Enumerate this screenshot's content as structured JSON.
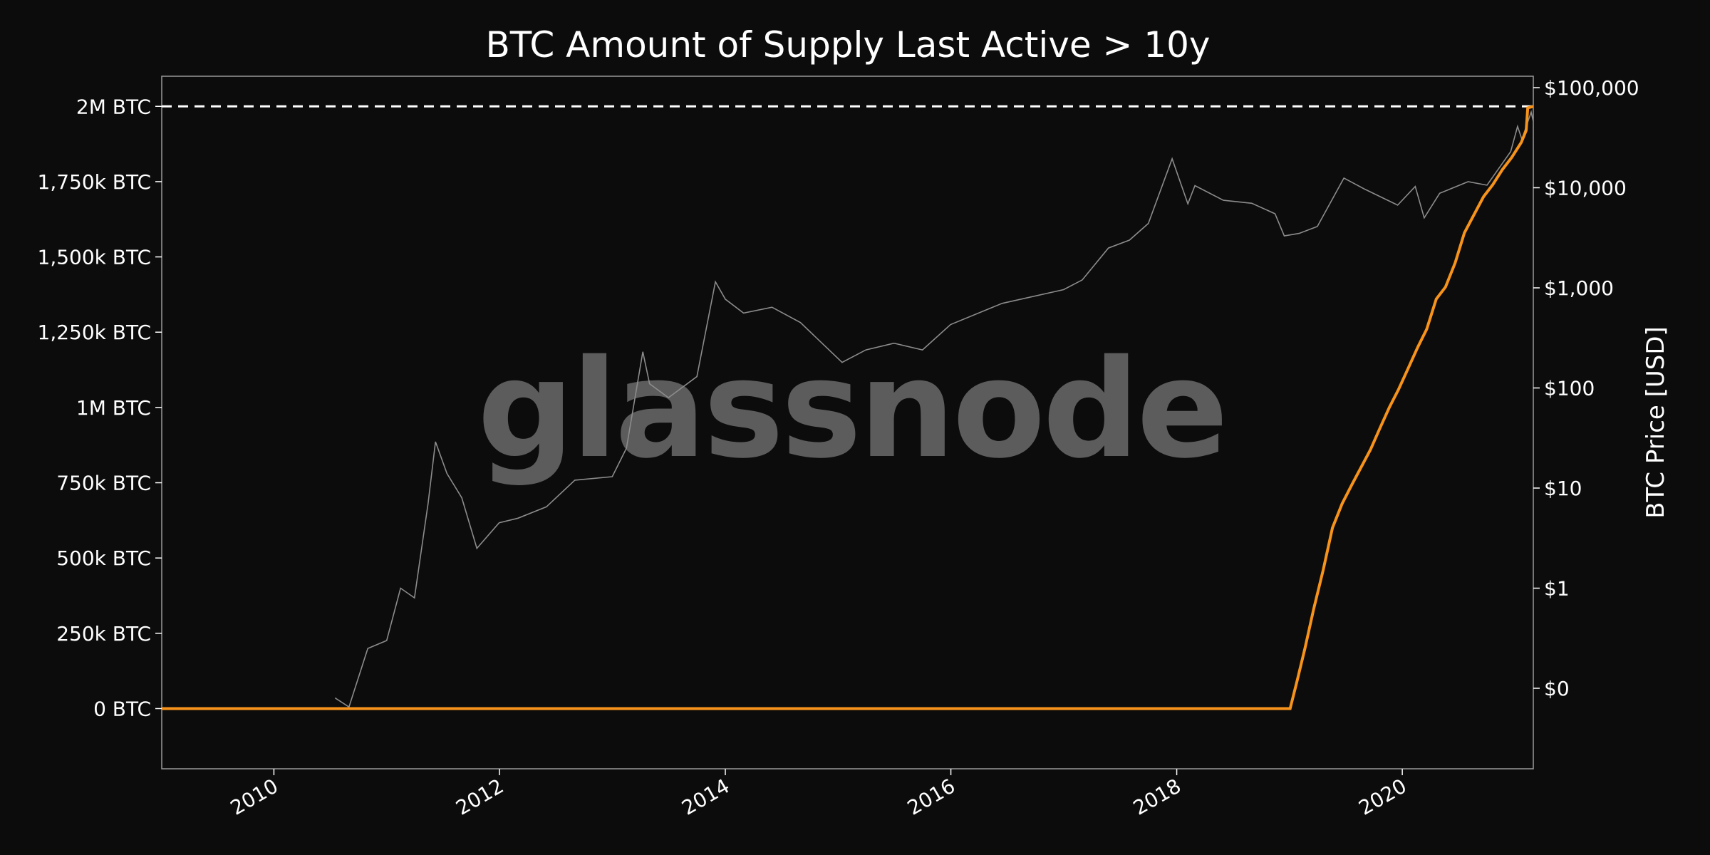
{
  "chart_data": {
    "type": "line",
    "title": "BTC Amount of Supply Last Active > 10y",
    "watermark": "glassnode",
    "x_range": [
      "2009-01-03",
      "2021-02-28"
    ],
    "x_ticks": [
      "2010",
      "2012",
      "2014",
      "2016",
      "2018",
      "2020"
    ],
    "y_left": {
      "label": "",
      "range": [
        -200000,
        2100000
      ],
      "unit": "BTC",
      "ticks": [
        {
          "value": 0,
          "label": "0 BTC"
        },
        {
          "value": 250000,
          "label": "250k BTC"
        },
        {
          "value": 500000,
          "label": "500k BTC"
        },
        {
          "value": 750000,
          "label": "750k BTC"
        },
        {
          "value": 1000000,
          "label": "1M BTC"
        },
        {
          "value": 1250000,
          "label": "1,250k BTC"
        },
        {
          "value": 1500000,
          "label": "1,500k BTC"
        },
        {
          "value": 1750000,
          "label": "1,750k BTC"
        },
        {
          "value": 2000000,
          "label": "2M BTC"
        }
      ]
    },
    "y_right": {
      "label": "BTC Price [USD]",
      "scale": "log",
      "ticks": [
        {
          "value": 0.1,
          "label": "$0"
        },
        {
          "value": 1,
          "label": "$1"
        },
        {
          "value": 10,
          "label": "$10"
        },
        {
          "value": 100,
          "label": "$100"
        },
        {
          "value": 1000,
          "label": "$1,000"
        },
        {
          "value": 10000,
          "label": "$10,000"
        },
        {
          "value": 100000,
          "label": "$100,000"
        }
      ]
    },
    "reference_line": {
      "value": 2000000,
      "style": "dashed",
      "color": "#ffffff"
    },
    "grid": false,
    "series": [
      {
        "axis": "left",
        "color": "#f7931a",
        "points": [
          [
            "2009-01-03",
            0
          ],
          [
            "2019-01-03",
            0
          ],
          [
            "2019-01-25",
            90000
          ],
          [
            "2019-02-20",
            200000
          ],
          [
            "2019-03-20",
            330000
          ],
          [
            "2019-04-20",
            460000
          ],
          [
            "2019-05-20",
            600000
          ],
          [
            "2019-06-20",
            680000
          ],
          [
            "2019-07-20",
            740000
          ],
          [
            "2019-08-20",
            800000
          ],
          [
            "2019-09-20",
            860000
          ],
          [
            "2019-10-20",
            930000
          ],
          [
            "2019-11-20",
            1000000
          ],
          [
            "2019-12-20",
            1060000
          ],
          [
            "2020-01-20",
            1130000
          ],
          [
            "2020-02-20",
            1200000
          ],
          [
            "2020-03-20",
            1260000
          ],
          [
            "2020-04-20",
            1360000
          ],
          [
            "2020-05-20",
            1400000
          ],
          [
            "2020-06-20",
            1480000
          ],
          [
            "2020-07-20",
            1580000
          ],
          [
            "2020-08-20",
            1640000
          ],
          [
            "2020-09-20",
            1700000
          ],
          [
            "2020-10-20",
            1740000
          ],
          [
            "2020-11-20",
            1790000
          ],
          [
            "2020-12-20",
            1830000
          ],
          [
            "2021-01-20",
            1880000
          ],
          [
            "2021-02-05",
            1920000
          ],
          [
            "2021-02-10",
            1995000
          ],
          [
            "2021-02-28",
            2000000
          ]
        ]
      },
      {
        "axis": "right",
        "color": "#8c8c8c",
        "points": [
          [
            "2010-07-18",
            0.08
          ],
          [
            "2010-09-01",
            0.065
          ],
          [
            "2010-11-01",
            0.25
          ],
          [
            "2011-01-01",
            0.3
          ],
          [
            "2011-02-15",
            1.0
          ],
          [
            "2011-04-01",
            0.8
          ],
          [
            "2011-05-15",
            7
          ],
          [
            "2011-06-08",
            29
          ],
          [
            "2011-07-15",
            14
          ],
          [
            "2011-09-01",
            8
          ],
          [
            "2011-10-20",
            2.5
          ],
          [
            "2011-12-31",
            4.5
          ],
          [
            "2012-03-01",
            5
          ],
          [
            "2012-06-01",
            6.5
          ],
          [
            "2012-09-01",
            12
          ],
          [
            "2012-12-31",
            13
          ],
          [
            "2013-02-15",
            25
          ],
          [
            "2013-04-09",
            230
          ],
          [
            "2013-05-01",
            110
          ],
          [
            "2013-07-01",
            80
          ],
          [
            "2013-10-01",
            130
          ],
          [
            "2013-11-30",
            1150
          ],
          [
            "2014-01-01",
            770
          ],
          [
            "2014-03-01",
            560
          ],
          [
            "2014-06-01",
            640
          ],
          [
            "2014-09-01",
            450
          ],
          [
            "2015-01-14",
            180
          ],
          [
            "2015-04-01",
            240
          ],
          [
            "2015-07-01",
            280
          ],
          [
            "2015-10-01",
            240
          ],
          [
            "2015-12-31",
            430
          ],
          [
            "2016-06-15",
            700
          ],
          [
            "2016-12-31",
            960
          ],
          [
            "2017-03-01",
            1200
          ],
          [
            "2017-05-25",
            2500
          ],
          [
            "2017-08-01",
            3000
          ],
          [
            "2017-10-01",
            4400
          ],
          [
            "2017-12-17",
            19500
          ],
          [
            "2018-02-06",
            6900
          ],
          [
            "2018-03-01",
            10500
          ],
          [
            "2018-06-01",
            7500
          ],
          [
            "2018-09-01",
            7000
          ],
          [
            "2018-11-15",
            5500
          ],
          [
            "2018-12-15",
            3300
          ],
          [
            "2019-02-01",
            3500
          ],
          [
            "2019-04-01",
            4100
          ],
          [
            "2019-06-26",
            12500
          ],
          [
            "2019-09-01",
            9700
          ],
          [
            "2019-12-17",
            6700
          ],
          [
            "2020-02-12",
            10300
          ],
          [
            "2020-03-12",
            5000
          ],
          [
            "2020-05-01",
            8800
          ],
          [
            "2020-08-01",
            11500
          ],
          [
            "2020-10-01",
            10600
          ],
          [
            "2020-12-17",
            23000
          ],
          [
            "2021-01-08",
            41000
          ],
          [
            "2021-01-22",
            30500
          ],
          [
            "2021-02-21",
            57000
          ],
          [
            "2021-02-28",
            46000
          ]
        ]
      }
    ]
  }
}
